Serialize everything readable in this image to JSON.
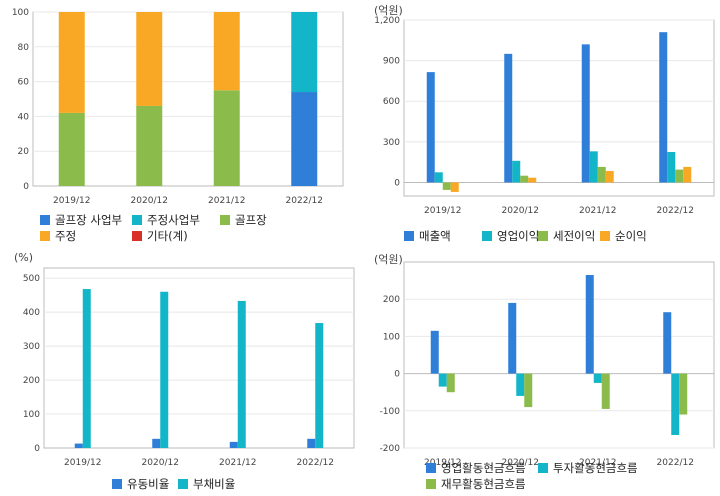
{
  "chart_data": [
    {
      "id": "composition",
      "type": "bar",
      "stacked": true,
      "title": "",
      "unit": "",
      "categories": [
        "2019/12",
        "2020/12",
        "2021/12",
        "2022/12"
      ],
      "ylim": [
        0,
        100
      ],
      "yticks": [
        0,
        20,
        40,
        60,
        80,
        100
      ],
      "grid": true,
      "legend_position": "bottom",
      "series": [
        {
          "name": "골프장 사업부",
          "color": "#2f7ed8",
          "values": [
            0,
            0,
            0,
            54
          ]
        },
        {
          "name": "주정사업부",
          "color": "#12b6c8",
          "values": [
            0,
            0,
            0,
            46
          ]
        },
        {
          "name": "골프장",
          "color": "#8bbc4b",
          "values": [
            42,
            46,
            55,
            0
          ]
        },
        {
          "name": "주정",
          "color": "#f9a825",
          "values": [
            58,
            54,
            45,
            0
          ]
        },
        {
          "name": "기타(계)",
          "color": "#d9302a",
          "values": [
            0,
            0,
            0,
            0
          ]
        }
      ]
    },
    {
      "id": "income",
      "type": "bar",
      "title": "",
      "unit": "(억원)",
      "categories": [
        "2019/12",
        "2020/12",
        "2021/12",
        "2022/12"
      ],
      "ylim": [
        -100,
        1200
      ],
      "yticks": [
        0,
        300,
        600,
        900,
        1200
      ],
      "ytick_labels": [
        "0",
        "300",
        "600",
        "900",
        "1,200"
      ],
      "grid": true,
      "legend_position": "bottom",
      "series": [
        {
          "name": "매출액",
          "color": "#2f7ed8",
          "values": [
            815,
            950,
            1020,
            1110
          ]
        },
        {
          "name": "영업이익",
          "color": "#12b6c8",
          "values": [
            75,
            160,
            230,
            225
          ]
        },
        {
          "name": "세전이익",
          "color": "#8bbc4b",
          "values": [
            -55,
            50,
            115,
            95
          ]
        },
        {
          "name": "순이익",
          "color": "#f9a825",
          "values": [
            -70,
            35,
            85,
            115
          ]
        }
      ]
    },
    {
      "id": "ratios",
      "type": "bar",
      "title": "",
      "unit": "(%)",
      "categories": [
        "2019/12",
        "2020/12",
        "2021/12",
        "2022/12"
      ],
      "ylim": [
        0,
        530
      ],
      "yticks": [
        0,
        100,
        200,
        300,
        400,
        500
      ],
      "grid": true,
      "legend_position": "bottom",
      "series": [
        {
          "name": "유동비율",
          "color": "#2f7ed8",
          "values": [
            13,
            27,
            18,
            27
          ]
        },
        {
          "name": "부채비율",
          "color": "#12b6c8",
          "values": [
            468,
            460,
            433,
            368
          ]
        }
      ]
    },
    {
      "id": "cashflow",
      "type": "bar",
      "title": "",
      "unit": "(억원)",
      "categories": [
        "2019/12",
        "2020/12",
        "2021/12",
        "2022/12"
      ],
      "ylim": [
        -200,
        300
      ],
      "yticks": [
        -200,
        -100,
        0,
        100,
        200
      ],
      "grid": true,
      "legend_position": "bottom",
      "series": [
        {
          "name": "영업활동현금흐름",
          "color": "#2f7ed8",
          "values": [
            115,
            190,
            265,
            165
          ]
        },
        {
          "name": "투자활동현금흐름",
          "color": "#12b6c8",
          "values": [
            -35,
            -60,
            -25,
            -165
          ]
        },
        {
          "name": "재무활동현금흐름",
          "color": "#8bbc4b",
          "values": [
            -50,
            -90,
            -95,
            -110
          ]
        }
      ]
    }
  ]
}
